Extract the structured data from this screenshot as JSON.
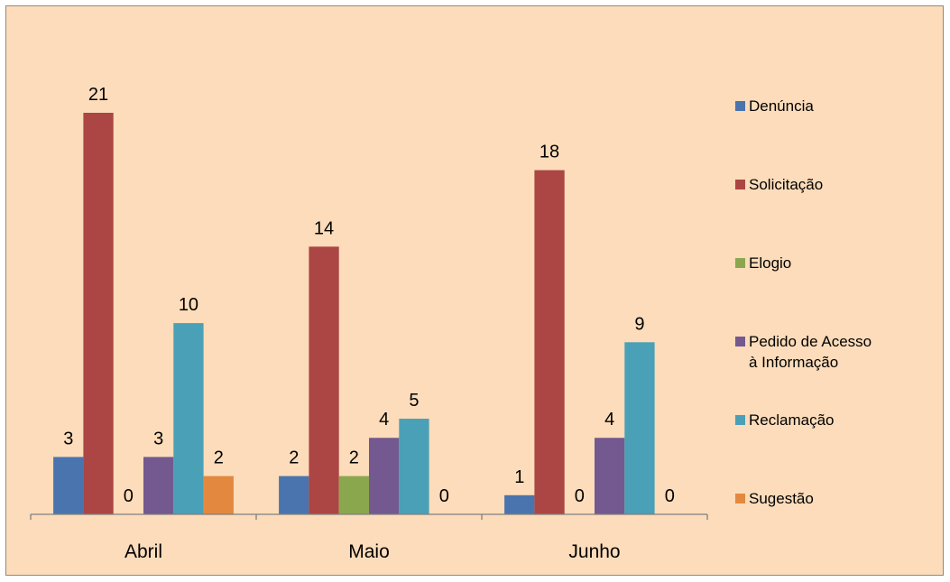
{
  "chart_data": {
    "type": "bar",
    "categories": [
      "Abril",
      "Maio",
      "Junho"
    ],
    "series": [
      {
        "name": "Denúncia",
        "color": "#4a74ad",
        "values": [
          3,
          2,
          1
        ]
      },
      {
        "name": "Solicitação",
        "color": "#ab4644",
        "values": [
          21,
          14,
          18
        ]
      },
      {
        "name": "Elogio",
        "color": "#8ba74e",
        "values": [
          0,
          2,
          0
        ]
      },
      {
        "name": "Pedido de Acesso à Informação",
        "color": "#73598f",
        "values": [
          3,
          4,
          4
        ]
      },
      {
        "name": "Reclamação",
        "color": "#4aa0b7",
        "values": [
          10,
          5,
          9
        ]
      },
      {
        "name": "Sugestão",
        "color": "#e2893f",
        "values": [
          2,
          0,
          0
        ]
      }
    ],
    "ylim": [
      0,
      21
    ],
    "legend": "right",
    "grid": false,
    "data_labels": true
  }
}
